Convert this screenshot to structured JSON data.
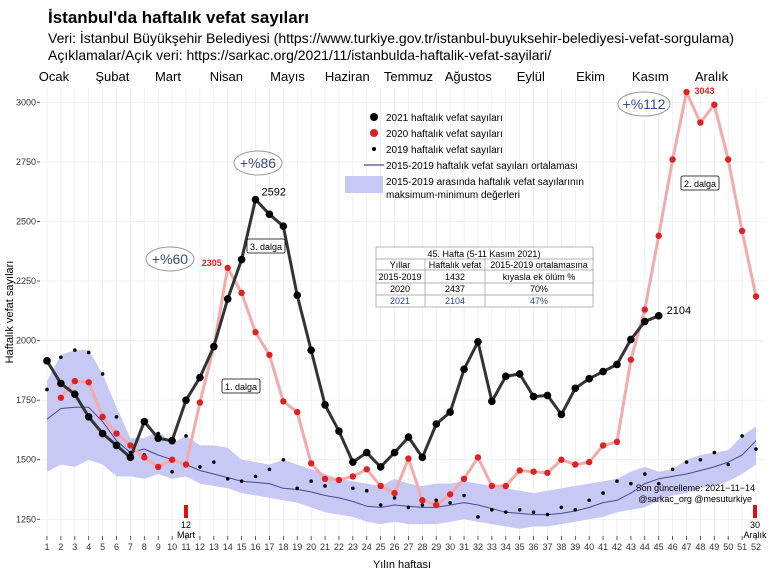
{
  "header": {
    "title": "İstanbul'da haftalık vefat sayıları",
    "source": "Veri: İstanbul Büyükşehir Belediyesi (https://www.turkiye.gov.tr/istanbul-buyuksehir-belediyesi-vefat-sorgulama)",
    "notes": "Açıklamalar/Açık veri:  https://sarkac.org/2021/11/istanbulda-haftalik-vefat-sayilari/"
  },
  "chart_data": {
    "type": "line",
    "title": "İstanbul'da haftalık vefat sayıları",
    "xlabel": "Yılın haftası",
    "ylabel": "Haftalık vefat sayıları",
    "xlim": [
      1,
      52
    ],
    "ylim": [
      1180,
      3060
    ],
    "yticks": [
      1250,
      1500,
      1750,
      2000,
      2250,
      2500,
      2750,
      3000
    ],
    "xticks": [
      1,
      2,
      3,
      4,
      5,
      6,
      7,
      8,
      9,
      10,
      11,
      12,
      13,
      14,
      15,
      16,
      17,
      18,
      19,
      20,
      21,
      22,
      23,
      24,
      25,
      26,
      27,
      28,
      29,
      30,
      31,
      32,
      33,
      34,
      35,
      36,
      37,
      38,
      39,
      40,
      41,
      42,
      43,
      44,
      45,
      46,
      47,
      48,
      49,
      50,
      51,
      52
    ],
    "grid": true,
    "months": [
      {
        "label": "Ocak",
        "week": 1.5
      },
      {
        "label": "Şubat",
        "week": 5.7
      },
      {
        "label": "Mart",
        "week": 9.7
      },
      {
        "label": "Nisan",
        "week": 13.9
      },
      {
        "label": "Mayıs",
        "week": 18.3
      },
      {
        "label": "Haziran",
        "week": 22.6
      },
      {
        "label": "Temmuz",
        "week": 27
      },
      {
        "label": "Ağustos",
        "week": 31.3
      },
      {
        "label": "Eylül",
        "week": 35.8
      },
      {
        "label": "Ekim",
        "week": 40.1
      },
      {
        "label": "Kasım",
        "week": 44.4
      },
      {
        "label": "Aralık",
        "week": 48.8
      }
    ],
    "series": [
      {
        "name": "2021 haftalık vefat sayıları",
        "color": "#000000",
        "x": [
          1,
          2,
          3,
          4,
          5,
          6,
          7,
          8,
          9,
          10,
          11,
          12,
          13,
          14,
          15,
          16,
          17,
          18,
          19,
          20,
          21,
          22,
          23,
          24,
          25,
          26,
          27,
          28,
          29,
          30,
          31,
          32,
          33,
          34,
          35,
          36,
          37,
          38,
          39,
          40,
          41,
          42,
          43,
          44,
          45
        ],
        "values": [
          1915,
          1820,
          1775,
          1680,
          1610,
          1560,
          1510,
          1660,
          1590,
          1580,
          1750,
          1845,
          1975,
          2175,
          2340,
          2592,
          2530,
          2480,
          2190,
          1960,
          1730,
          1620,
          1490,
          1530,
          1470,
          1530,
          1595,
          1510,
          1650,
          1700,
          1880,
          1995,
          1745,
          1850,
          1860,
          1765,
          1770,
          1690,
          1800,
          1840,
          1870,
          1900,
          2005,
          2080,
          2104
        ]
      },
      {
        "name": "2020 haftalık vefat sayıları",
        "color": "#dd2222",
        "x": [
          2,
          3,
          4,
          5,
          6,
          7,
          8,
          9,
          10,
          11,
          12,
          13,
          14,
          15,
          16,
          17,
          18,
          19,
          20,
          21,
          22,
          23,
          24,
          25,
          26,
          27,
          28,
          29,
          30,
          31,
          32,
          33,
          34,
          35,
          36,
          37,
          38,
          39,
          40,
          41,
          42,
          43,
          44,
          45,
          46,
          47,
          48,
          49,
          50,
          51,
          52
        ],
        "values": [
          1760,
          1830,
          1825,
          1680,
          1610,
          1560,
          1510,
          1470,
          1500,
          1480,
          1740,
          1975,
          2305,
          2200,
          2035,
          1940,
          1745,
          1700,
          1485,
          1420,
          1415,
          1430,
          1460,
          1390,
          1360,
          1505,
          1330,
          1310,
          1355,
          1420,
          1510,
          1390,
          1390,
          1455,
          1450,
          1445,
          1500,
          1480,
          1490,
          1560,
          1575,
          1920,
          2130,
          2440,
          2760,
          3043,
          2915,
          2990,
          2760,
          2460,
          2185
        ]
      },
      {
        "name": "2019 haftalık vefat sayıları",
        "color": "#000000",
        "x": [
          1,
          2,
          3,
          4,
          5,
          6,
          7,
          8,
          9,
          10,
          11,
          12,
          13,
          14,
          15,
          16,
          17,
          18,
          19,
          20,
          21,
          22,
          23,
          24,
          25,
          26,
          27,
          28,
          29,
          30,
          31,
          32,
          33,
          34,
          35,
          36,
          37,
          38,
          39,
          40,
          41,
          42,
          43,
          44,
          45,
          46,
          47,
          48,
          49,
          50,
          51,
          52
        ],
        "values": [
          1795,
          1930,
          1960,
          1950,
          1860,
          1680,
          1530,
          1520,
          1610,
          1450,
          1600,
          1470,
          1490,
          1420,
          1410,
          1430,
          1460,
          1500,
          1380,
          1410,
          1390,
          1420,
          1380,
          1370,
          1310,
          1340,
          1300,
          1310,
          1330,
          1320,
          1350,
          1260,
          1290,
          1280,
          1290,
          1280,
          1270,
          1300,
          1290,
          1330,
          1360,
          1410,
          1400,
          1440,
          1400,
          1460,
          1490,
          1500,
          1530,
          1480,
          1600,
          1545
        ]
      },
      {
        "name": "2015-2019 haftalık vefat sayıları ortalaması",
        "color": "#4a4a8a",
        "x": [
          1,
          2,
          3,
          4,
          5,
          6,
          7,
          8,
          9,
          10,
          11,
          12,
          13,
          14,
          15,
          16,
          17,
          18,
          19,
          20,
          21,
          22,
          23,
          24,
          25,
          26,
          27,
          28,
          29,
          30,
          31,
          32,
          33,
          34,
          35,
          36,
          37,
          38,
          39,
          40,
          41,
          42,
          43,
          44,
          45,
          46,
          47,
          48,
          49,
          50,
          51,
          52
        ],
        "values": [
          1670,
          1715,
          1720,
          1720,
          1660,
          1580,
          1530,
          1545,
          1520,
          1500,
          1480,
          1455,
          1440,
          1425,
          1410,
          1405,
          1400,
          1380,
          1375,
          1365,
          1350,
          1340,
          1325,
          1305,
          1300,
          1310,
          1305,
          1300,
          1300,
          1310,
          1320,
          1310,
          1295,
          1280,
          1275,
          1270,
          1270,
          1275,
          1285,
          1300,
          1320,
          1330,
          1360,
          1400,
          1420,
          1430,
          1440,
          1455,
          1470,
          1490,
          1520,
          1580
        ]
      },
      {
        "name": "2015-2019 arasında haftalık vefat sayılarının maksimum-minimum değerleri",
        "color": "#c8c8f5",
        "x": [
          1,
          2,
          3,
          4,
          5,
          6,
          7,
          8,
          9,
          10,
          11,
          12,
          13,
          14,
          15,
          16,
          17,
          18,
          19,
          20,
          21,
          22,
          23,
          24,
          25,
          26,
          27,
          28,
          29,
          30,
          31,
          32,
          33,
          34,
          35,
          36,
          37,
          38,
          39,
          40,
          41,
          42,
          43,
          44,
          45,
          46,
          47,
          48,
          49,
          50,
          51,
          52
        ],
        "max": [
          1830,
          1940,
          1960,
          1960,
          1860,
          1720,
          1590,
          1590,
          1620,
          1570,
          1600,
          1560,
          1560,
          1550,
          1500,
          1490,
          1480,
          1500,
          1480,
          1460,
          1440,
          1420,
          1410,
          1400,
          1390,
          1420,
          1400,
          1390,
          1400,
          1400,
          1410,
          1400,
          1390,
          1380,
          1370,
          1360,
          1370,
          1380,
          1390,
          1400,
          1410,
          1420,
          1450,
          1470,
          1450,
          1460,
          1500,
          1520,
          1530,
          1540,
          1600,
          1640
        ],
        "min": [
          1450,
          1480,
          1470,
          1500,
          1480,
          1430,
          1430,
          1420,
          1440,
          1420,
          1430,
          1400,
          1390,
          1380,
          1360,
          1350,
          1340,
          1330,
          1320,
          1300,
          1280,
          1270,
          1260,
          1240,
          1230,
          1240,
          1230,
          1230,
          1230,
          1240,
          1250,
          1240,
          1230,
          1220,
          1210,
          1220,
          1220,
          1230,
          1240,
          1250,
          1260,
          1280,
          1290,
          1300,
          1330,
          1350,
          1360,
          1380,
          1390,
          1410,
          1440,
          1480
        ]
      }
    ],
    "point_labels": [
      {
        "text": "2592",
        "week": 16,
        "value": 2592,
        "color": "#000000"
      },
      {
        "text": "2305",
        "week": 14,
        "value": 2305,
        "color": "#dd2222"
      },
      {
        "text": "3043",
        "week": 47,
        "value": 3043,
        "color": "#dd2222"
      },
      {
        "text": "2104",
        "week": 45,
        "value": 2104,
        "color": "#000000"
      }
    ],
    "annotations": {
      "pct60": "+%60",
      "pct86": "+%86",
      "pct112": "+%112",
      "wave1": "1. dalga",
      "wave2": "2. dalga",
      "wave3": "3. dalga",
      "mark_left_day": "12",
      "mark_left_month": "Mart",
      "mark_right_day": "30",
      "mark_right_month": "Aralık",
      "updated": "Son güncelleme: 2021−11−14",
      "handles": "@sarkac_org @mesuturkiye"
    },
    "legend": {
      "placement": "top-center",
      "line5b": "maksimum-minimum değerleri"
    },
    "table": {
      "title": "45. Hafta (5-11 Kasım 2021)",
      "headers": [
        "Yıllar",
        "Haftalık vefat",
        "2015-2019 ortalamasına"
      ],
      "subheader": "kıyasla ek ölüm %",
      "rows": [
        [
          "2015-2019",
          "1432",
          ""
        ],
        [
          "2020",
          "2437",
          "70%"
        ],
        [
          "2021",
          "2104",
          "47%"
        ]
      ]
    }
  }
}
